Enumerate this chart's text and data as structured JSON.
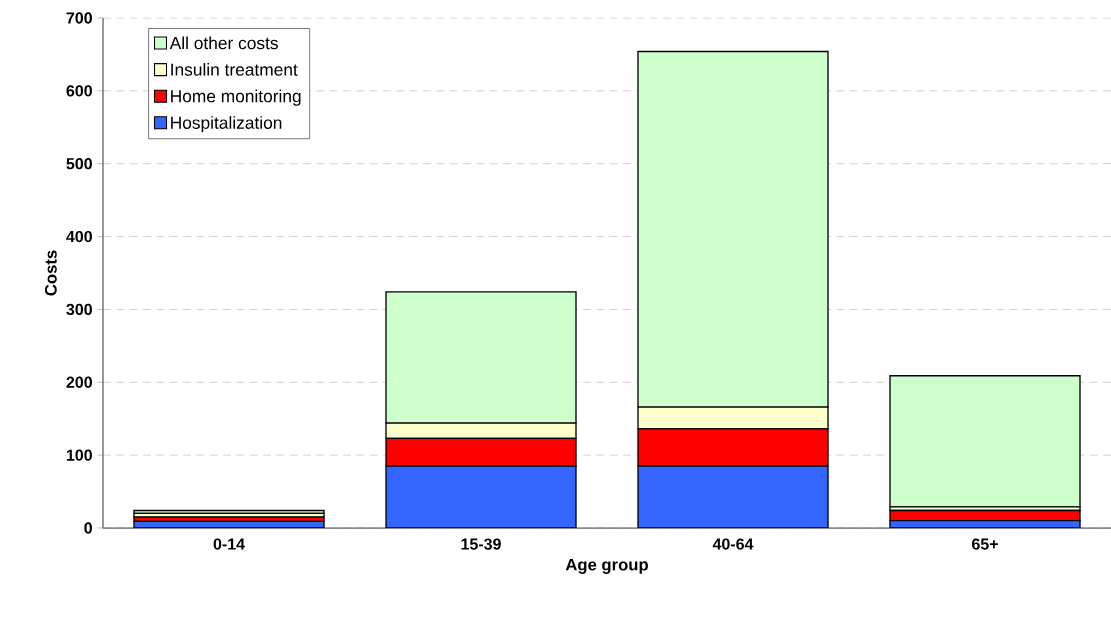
{
  "chart_data": {
    "type": "bar",
    "stacked": true,
    "xlabel": "Age group",
    "ylabel": "Costs",
    "categories": [
      "0-14",
      "15-39",
      "40-64",
      "65+"
    ],
    "series": [
      {
        "name": "Hospitalization",
        "color": "#3366ff",
        "values": [
          9,
          85,
          85,
          10
        ]
      },
      {
        "name": "Home monitoring",
        "color": "#ff0000",
        "values": [
          6,
          38,
          51,
          14
        ]
      },
      {
        "name": "Insulin treatment",
        "color": "#ffffcc",
        "values": [
          5,
          21,
          30,
          5
        ]
      },
      {
        "name": "All other costs",
        "color": "#ccffcc",
        "values": [
          4,
          180,
          488,
          180
        ]
      }
    ],
    "ylim": [
      0,
      700
    ],
    "yticks": [
      0,
      100,
      200,
      300,
      400,
      500,
      600,
      700
    ],
    "grid": "y",
    "legend": "top left"
  }
}
